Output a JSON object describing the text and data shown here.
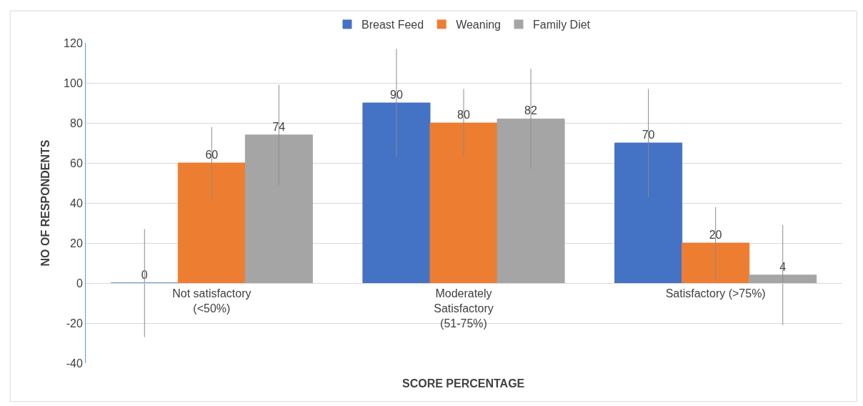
{
  "chart_data": {
    "type": "bar",
    "xlabel": "SCORE PERCENTAGE",
    "ylabel": "NO OF RESPONDENTS",
    "categories": [
      "Not satisfactory (<50%)",
      "Moderately Satisfactory (51-75%)",
      "Satisfactory (>75%)"
    ],
    "series": [
      {
        "name": "Breast Feed",
        "color": "#4472c4",
        "values": [
          0,
          90,
          70
        ],
        "errors": [
          27,
          27,
          27
        ]
      },
      {
        "name": "Weaning",
        "color": "#ed7d31",
        "values": [
          60,
          80,
          20
        ],
        "errors": [
          18,
          17,
          18
        ]
      },
      {
        "name": "Family Diet",
        "color": "#a5a5a5",
        "values": [
          74,
          82,
          4
        ],
        "errors": [
          25,
          25,
          25
        ]
      }
    ],
    "ylim": [
      -40,
      120
    ],
    "yticks": [
      -40,
      -20,
      0,
      20,
      40,
      60,
      80,
      100,
      120
    ],
    "grid": "y",
    "legend": "top",
    "data_labels": true
  }
}
